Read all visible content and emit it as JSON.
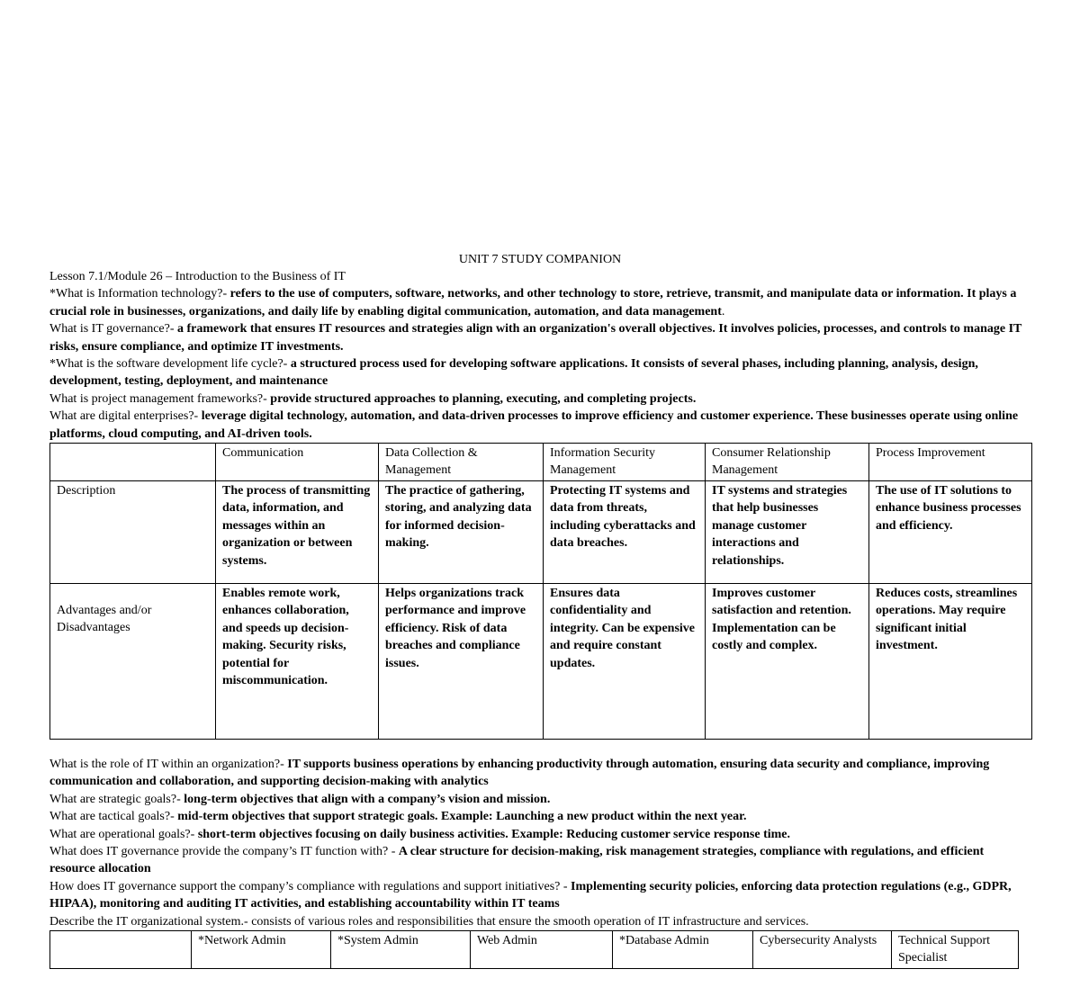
{
  "title": "UNIT 7 STUDY COMPANION",
  "lesson": "Lesson 7.1/Module 26 – Introduction to the Business of IT",
  "qa_top": [
    {
      "q": "*What is Information technology?- ",
      "a": "refers to the use of computers, software, networks, and other technology to store, retrieve, transmit, and manipulate data or information. It plays a crucial role in businesses, organizations, and daily life by enabling digital communication, automation, and data management",
      "tail": "."
    },
    {
      "q": "What is IT governance?- ",
      "a": "a framework that ensures IT resources and strategies align with an organization's overall objectives. It involves policies, processes, and controls to manage IT risks, ensure compliance, and optimize IT investments.",
      "tail": ""
    },
    {
      "q": "*What is the software development life cycle?- ",
      "a": "a structured process used for developing software applications. It consists of several phases, including planning, analysis, design, development, testing, deployment, and maintenance",
      "tail": ""
    },
    {
      "q": "What is project management frameworks?- ",
      "a": "provide structured approaches to planning, executing, and completing projects.",
      "tail": ""
    },
    {
      "q": "What are digital enterprises?- ",
      "a": "leverage digital technology, automation, and data-driven processes to improve efficiency and customer experience. These businesses operate using online platforms, cloud computing, and AI-driven tools.",
      "tail": ""
    }
  ],
  "table1": {
    "headers": [
      "",
      "Communication",
      "Data Collection & Management",
      "Information Security Management",
      "Consumer Relationship Management",
      "Process Improvement"
    ],
    "rows": [
      {
        "label": "Description",
        "cells": [
          "The process of transmitting data, information, and messages within an organization or between systems.",
          "The practice of gathering, storing, and analyzing data for informed decision-making.",
          "Protecting IT systems and data from threats, including cyberattacks and data breaches.",
          "IT systems and strategies that help businesses manage customer interactions and relationships.",
          "The use of IT solutions to enhance business processes and efficiency."
        ]
      },
      {
        "label": "Advantages and/or Disadvantages",
        "cells": [
          "Enables remote work, enhances collaboration, and speeds up decision-making. Security risks, potential for miscommunication.",
          "Helps organizations track performance and improve efficiency. Risk of data breaches and compliance issues.",
          "Ensures data confidentiality and integrity. Can be expensive and require constant updates.",
          "Improves customer satisfaction and retention. Implementation can be costly and complex.",
          "Reduces costs, streamlines operations. May require significant initial investment."
        ]
      }
    ]
  },
  "qa_bottom": [
    {
      "q": "What is the role of IT within an organization?- ",
      "a": "IT supports business operations by enhancing productivity through automation, ensuring data security and compliance, improving communication and collaboration, and supporting decision-making with analytics"
    },
    {
      "q": "What are strategic goals?- ",
      "a": "long-term objectives that align with a company’s vision and mission."
    },
    {
      "q": "What are tactical goals?- ",
      "a": "mid-term objectives that support strategic goals. Example: Launching a new product within the next year."
    },
    {
      "q": "What are operational goals?- ",
      "a": "short-term objectives focusing on daily business activities. Example: Reducing customer service response time."
    },
    {
      "q": "What does IT governance provide the company’s IT function with? - ",
      "a": "A clear structure for decision-making, risk management strategies, compliance with regulations, and efficient resource allocation"
    },
    {
      "q": "How does IT governance support the company’s compliance with regulations and support initiatives? - ",
      "a": "Implementing security policies, enforcing data protection regulations (e.g., GDPR, HIPAA), monitoring and auditing IT activities, and establishing accountability within IT teams"
    }
  ],
  "org_system": "Describe the IT organizational system.- consists of various roles and responsibilities that ensure the smooth operation of IT infrastructure and services.",
  "table2": {
    "headers": [
      "",
      "*Network Admin",
      "*System Admin",
      "Web Admin",
      "*Database Admin",
      "Cybersecurity Analysts",
      "Technical Support Specialist"
    ]
  }
}
